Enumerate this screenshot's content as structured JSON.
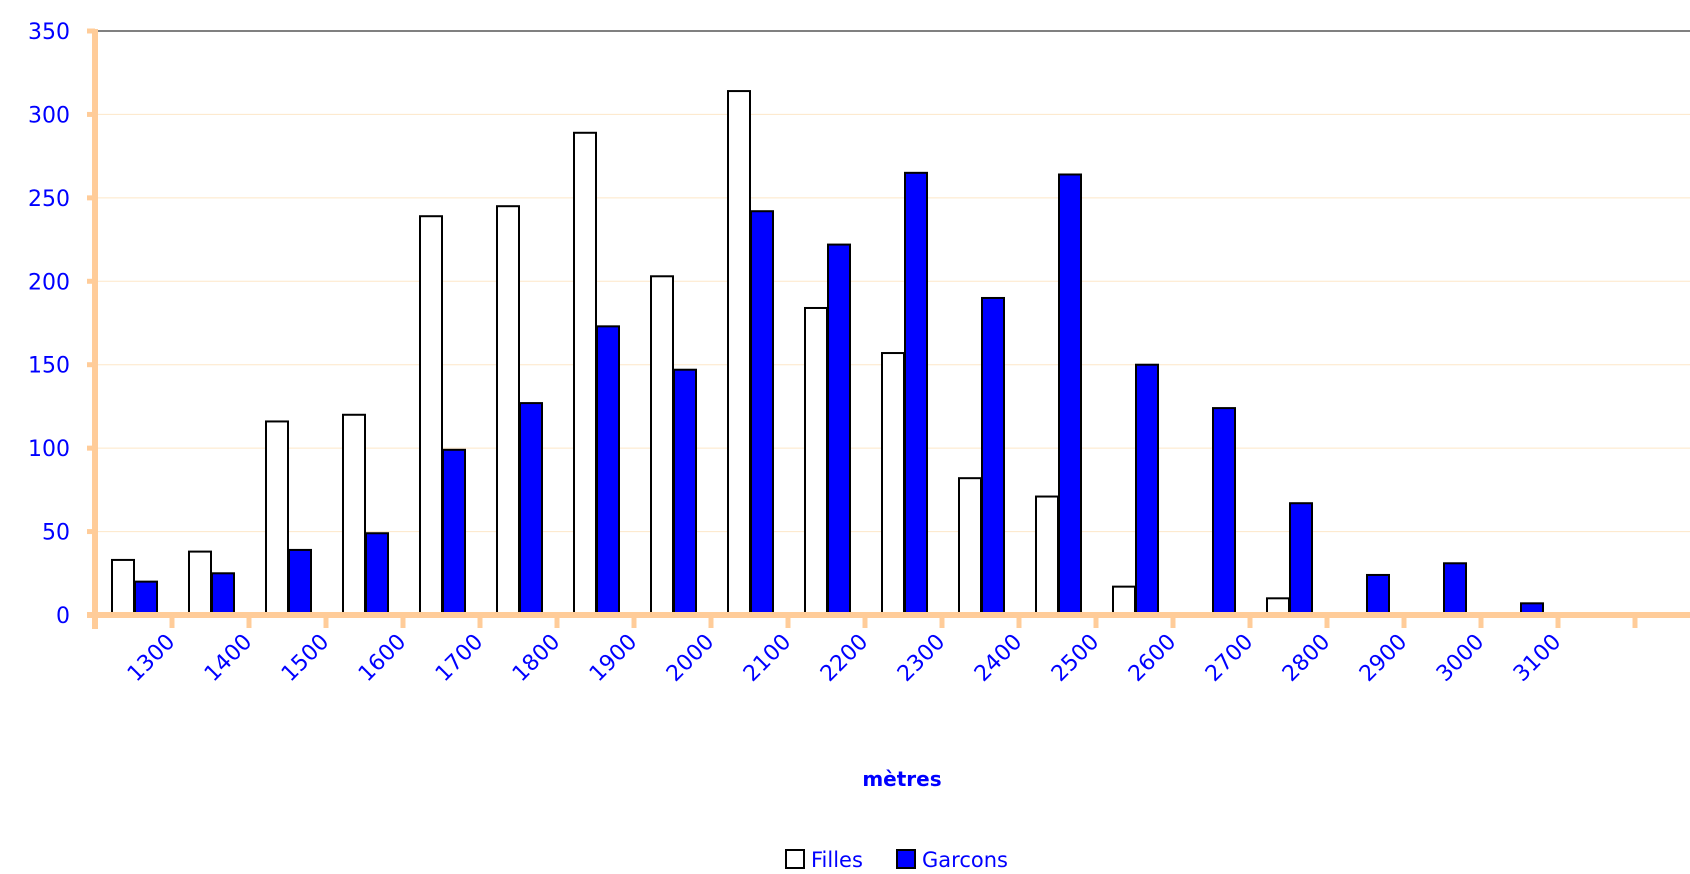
{
  "chart_data": {
    "type": "bar",
    "title": "",
    "xlabel": "mètres",
    "ylabel": "",
    "ylim": [
      0,
      350
    ],
    "yticks": [
      0,
      50,
      100,
      150,
      200,
      250,
      300,
      350
    ],
    "xtick_labels": [
      "1300",
      "1400",
      "1500",
      "1600",
      "1700",
      "1800",
      "1900",
      "2000",
      "2100",
      "2200",
      "2300",
      "2400",
      "2500",
      "2600",
      "2700",
      "2800",
      "2900",
      "3000",
      "3100"
    ],
    "category_count": 20,
    "grid": true,
    "legend_position": "bottom",
    "series": [
      {
        "name": "Filles",
        "color": "#ffffff",
        "values": [
          33,
          38,
          116,
          120,
          239,
          245,
          289,
          203,
          314,
          184,
          157,
          82,
          71,
          17,
          1,
          10,
          0,
          0,
          0,
          1
        ]
      },
      {
        "name": "Garcons",
        "color": "#0000ff",
        "values": [
          20,
          25,
          39,
          49,
          99,
          127,
          173,
          147,
          242,
          222,
          265,
          190,
          264,
          150,
          124,
          67,
          24,
          31,
          7,
          0
        ]
      }
    ],
    "colors": {
      "text": "#0000ff",
      "axis": "#ffcc99",
      "grid": "#fde7c8",
      "top_line": "#808080",
      "bar_outline": "#000000"
    }
  }
}
